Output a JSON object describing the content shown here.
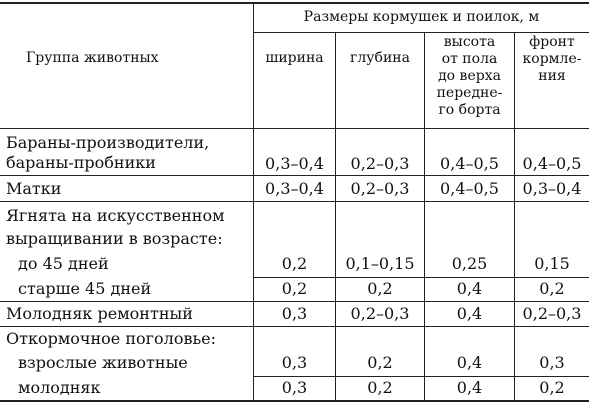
{
  "header": {
    "group_label": "Группа животных",
    "sizes_title": "Размеры кормушек и поилок, м",
    "col_width": "ширина",
    "col_depth": "глубина",
    "col_height": [
      "высота",
      "от пола",
      "до верха",
      "передне-",
      "го борта"
    ],
    "col_front": [
      "фронт",
      "кормле-",
      "ния"
    ]
  },
  "rows": {
    "rams": {
      "label_line1": "Бараны-производители,",
      "label_line2": "бараны-пробники",
      "values": [
        "0,3–0,4",
        "0,2–0,3",
        "0,4–0,5",
        "0,4–0,5"
      ]
    },
    "ewes": {
      "label": "Матки",
      "values": [
        "0,3–0,4",
        "0,2–0,3",
        "0,4–0,5",
        "0,3–0,4"
      ]
    },
    "lambs": {
      "label_line1": "Ягнята на искусственном",
      "label_line2": "выращивании в возрасте:",
      "sub1": {
        "label": "до 45 дней",
        "values": [
          "0,2",
          "0,1–0,15",
          "0,25",
          "0,15"
        ]
      },
      "sub2": {
        "label": "старше 45 дней",
        "values": [
          "0,2",
          "0,2",
          "0,4",
          "0,2"
        ]
      }
    },
    "replacement": {
      "label": "Молодняк ремонтный",
      "values": [
        "0,3",
        "0,2–0,3",
        "0,4",
        "0,2–0,3"
      ]
    },
    "fattening": {
      "label": "Откормочное поголовье:",
      "sub1": {
        "label": "взрослые животные",
        "values": [
          "0,3",
          "0,2",
          "0,4",
          "0,3"
        ]
      },
      "sub2": {
        "label": "молодняк",
        "values": [
          "0,3",
          "0,2",
          "0,4",
          "0,2"
        ]
      }
    }
  }
}
